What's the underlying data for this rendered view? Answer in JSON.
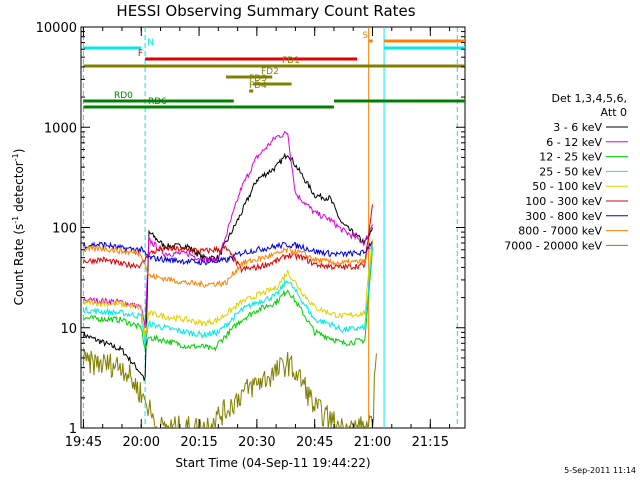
{
  "chart_data": {
    "type": "line",
    "title": "HESSI Observing Summary Count Rates",
    "xlabel": "Start Time (04-Sep-11 19:44:22)",
    "ylabel": "Count Rate (s⁻¹ detector⁻¹)",
    "ylabel_main": "Count Rate (s",
    "ylabel_sup1": "-1",
    "ylabel_mid": " detector",
    "ylabel_sup2": "-1",
    "ylabel_end": ")",
    "y_scale": "log",
    "ylim": [
      1,
      10000
    ],
    "xlim": [
      "19:44:22",
      "21:24:00"
    ],
    "x_ticks": [
      "19:45",
      "20:00",
      "20:15",
      "20:30",
      "20:45",
      "21:00",
      "21:15"
    ],
    "y_ticks": [
      {
        "value": 1,
        "label": "1"
      },
      {
        "value": 10,
        "label": "10"
      },
      {
        "value": 100,
        "label": "100"
      },
      {
        "value": 1000,
        "label": "1000"
      },
      {
        "value": 10000,
        "label": "10000"
      }
    ],
    "legend_header": [
      "Det 1,3,4,5,6,",
      "Att 0"
    ],
    "legend_position": "right",
    "timestamp": "5-Sep-2011 11:14",
    "series": [
      {
        "name": "3 - 6 keV",
        "color": "#000000",
        "points": [
          [
            "19:45",
            8.5
          ],
          [
            "19:55",
            6
          ],
          [
            "20:00",
            3.5
          ],
          [
            "20:01",
            3
          ],
          [
            "20:02",
            90
          ],
          [
            "20:06",
            65
          ],
          [
            "20:12",
            65
          ],
          [
            "20:16",
            50
          ],
          [
            "20:20",
            50
          ],
          [
            "20:26",
            140
          ],
          [
            "20:30",
            300
          ],
          [
            "20:35",
            400
          ],
          [
            "20:38",
            550
          ],
          [
            "20:40",
            420
          ],
          [
            "20:45",
            210
          ],
          [
            "20:49",
            195
          ],
          [
            "20:52",
            110
          ],
          [
            "20:58",
            70
          ],
          [
            "21:00",
            95
          ]
        ]
      },
      {
        "name": "6 - 12 keV",
        "color": "#e000e0",
        "points": [
          [
            "19:45",
            19
          ],
          [
            "19:55",
            18
          ],
          [
            "20:00",
            16
          ],
          [
            "20:01",
            10
          ],
          [
            "20:02",
            75
          ],
          [
            "20:06",
            55
          ],
          [
            "20:12",
            55
          ],
          [
            "20:16",
            48
          ],
          [
            "20:20",
            48
          ],
          [
            "20:26",
            250
          ],
          [
            "20:30",
            500
          ],
          [
            "20:35",
            800
          ],
          [
            "20:38",
            880
          ],
          [
            "20:40",
            220
          ],
          [
            "20:45",
            140
          ],
          [
            "20:49",
            120
          ],
          [
            "20:52",
            95
          ],
          [
            "20:58",
            70
          ],
          [
            "21:00",
            110
          ]
        ]
      },
      {
        "name": "12 - 25 keV",
        "color": "#00d000",
        "points": [
          [
            "19:45",
            12.5
          ],
          [
            "19:55",
            12
          ],
          [
            "20:00",
            10
          ],
          [
            "20:01",
            6
          ],
          [
            "20:02",
            8
          ],
          [
            "20:06",
            7.5
          ],
          [
            "20:12",
            6.5
          ],
          [
            "20:16",
            6.5
          ],
          [
            "20:19",
            6
          ],
          [
            "20:20",
            7
          ],
          [
            "20:26",
            12
          ],
          [
            "20:30",
            15
          ],
          [
            "20:35",
            18
          ],
          [
            "20:38",
            24
          ],
          [
            "20:42",
            14
          ],
          [
            "20:45",
            9
          ],
          [
            "20:49",
            8
          ],
          [
            "20:52",
            7
          ],
          [
            "20:58",
            7.5
          ],
          [
            "21:00",
            60
          ]
        ]
      },
      {
        "name": "25 - 50 keV",
        "color": "#00e8e8",
        "points": [
          [
            "19:45",
            15
          ],
          [
            "19:55",
            14
          ],
          [
            "20:00",
            13
          ],
          [
            "20:01",
            7
          ],
          [
            "20:02",
            11
          ],
          [
            "20:06",
            10
          ],
          [
            "20:12",
            9
          ],
          [
            "20:16",
            8.5
          ],
          [
            "20:20",
            9
          ],
          [
            "20:26",
            15
          ],
          [
            "20:30",
            18
          ],
          [
            "20:35",
            21
          ],
          [
            "20:38",
            30
          ],
          [
            "20:42",
            18
          ],
          [
            "20:45",
            12
          ],
          [
            "20:49",
            11
          ],
          [
            "20:52",
            9.5
          ],
          [
            "20:58",
            10
          ],
          [
            "21:00",
            65
          ]
        ]
      },
      {
        "name": "50 - 100 keV",
        "color": "#e0d000",
        "points": [
          [
            "19:45",
            18
          ],
          [
            "19:55",
            17
          ],
          [
            "20:00",
            16
          ],
          [
            "20:01",
            8
          ],
          [
            "20:02",
            14
          ],
          [
            "20:06",
            13
          ],
          [
            "20:12",
            12
          ],
          [
            "20:16",
            11
          ],
          [
            "20:20",
            12
          ],
          [
            "20:26",
            18
          ],
          [
            "20:30",
            21
          ],
          [
            "20:35",
            25
          ],
          [
            "20:38",
            36
          ],
          [
            "20:42",
            22
          ],
          [
            "20:45",
            16
          ],
          [
            "20:49",
            14
          ],
          [
            "20:52",
            13
          ],
          [
            "20:58",
            14
          ],
          [
            "21:00",
            80
          ]
        ]
      },
      {
        "name": "100 - 300 keV",
        "color": "#e00000",
        "points": [
          [
            "19:45",
            46
          ],
          [
            "19:50",
            48
          ],
          [
            "19:55",
            43
          ],
          [
            "20:00",
            42
          ],
          [
            "20:02",
            55
          ],
          [
            "20:06",
            62
          ],
          [
            "20:12",
            60
          ],
          [
            "20:16",
            58
          ],
          [
            "20:22",
            62
          ],
          [
            "20:26",
            38
          ],
          [
            "20:30",
            40
          ],
          [
            "20:35",
            46
          ],
          [
            "20:38",
            53
          ],
          [
            "20:42",
            50
          ],
          [
            "20:45",
            43
          ],
          [
            "20:49",
            41
          ],
          [
            "20:52",
            40
          ],
          [
            "20:58",
            42
          ],
          [
            "21:00",
            170
          ]
        ]
      },
      {
        "name": "300 - 800 keV",
        "color": "#0000e0",
        "points": [
          [
            "19:45",
            66
          ],
          [
            "19:50",
            68
          ],
          [
            "19:55",
            62
          ],
          [
            "20:00",
            60
          ],
          [
            "20:02",
            50
          ],
          [
            "20:06",
            48
          ],
          [
            "20:12",
            46
          ],
          [
            "20:16",
            45
          ],
          [
            "20:22",
            47
          ],
          [
            "20:26",
            56
          ],
          [
            "20:30",
            60
          ],
          [
            "20:35",
            65
          ],
          [
            "20:38",
            68
          ],
          [
            "20:42",
            64
          ],
          [
            "20:45",
            58
          ],
          [
            "20:49",
            55
          ],
          [
            "20:52",
            54
          ],
          [
            "20:58",
            56
          ],
          [
            "21:00",
            75
          ]
        ]
      },
      {
        "name": "800 - 7000 keV",
        "color": "#ff8000",
        "points": [
          [
            "19:45",
            60
          ],
          [
            "19:50",
            62
          ],
          [
            "19:55",
            58
          ],
          [
            "20:00",
            55
          ],
          [
            "20:02",
            33
          ],
          [
            "20:06",
            31
          ],
          [
            "20:12",
            28
          ],
          [
            "20:16",
            27
          ],
          [
            "20:22",
            28
          ],
          [
            "20:26",
            44
          ],
          [
            "20:30",
            48
          ],
          [
            "20:35",
            54
          ],
          [
            "20:38",
            60
          ],
          [
            "20:42",
            55
          ],
          [
            "20:45",
            48
          ],
          [
            "20:49",
            45
          ],
          [
            "20:52",
            44
          ],
          [
            "20:58",
            46
          ],
          [
            "21:00",
            70
          ]
        ]
      },
      {
        "name": "7000 - 20000 keV",
        "color": "#808000",
        "points": [
          [
            "19:45",
            4.5
          ],
          [
            "19:55",
            4.2
          ],
          [
            "20:00",
            2.2
          ],
          [
            "20:02",
            1.6
          ],
          [
            "20:04",
            1.0
          ],
          [
            "20:16",
            1.0
          ],
          [
            "20:22",
            1.5
          ],
          [
            "20:26",
            2.2
          ],
          [
            "20:30",
            2.8
          ],
          [
            "20:35",
            3.6
          ],
          [
            "20:38",
            4.5
          ],
          [
            "20:42",
            2.8
          ],
          [
            "20:45",
            1.6
          ],
          [
            "20:48",
            1.3
          ],
          [
            "20:52",
            1.0
          ],
          [
            "21:00",
            1.0
          ],
          [
            "21:01",
            7
          ]
        ]
      }
    ],
    "segment_bars": [
      {
        "label": "N",
        "color": "#00e8e8",
        "level": 1,
        "segments": [
          [
            "19:45",
            "20:00"
          ],
          [
            "21:03",
            "21:24"
          ]
        ]
      },
      {
        "label": "S",
        "color": "#ff8000",
        "level": 0,
        "segments": [
          [
            "20:59",
            "21:00"
          ],
          [
            "21:03",
            "21:24"
          ]
        ]
      },
      {
        "label": "F",
        "color": "#e00000",
        "level": 2,
        "segments": [
          [
            "20:01",
            "20:56"
          ]
        ]
      },
      {
        "label": "FD1",
        "color": "#808000",
        "level": 3,
        "segments": [
          [
            "19:45",
            "21:24"
          ]
        ]
      },
      {
        "label": "FD2",
        "color": "#808000",
        "level": 4,
        "segments": [
          [
            "20:22",
            "20:34"
          ]
        ]
      },
      {
        "label": "FD3",
        "color": "#808000",
        "level": 5,
        "segments": [
          [
            "20:29",
            "20:39"
          ]
        ]
      },
      {
        "label": "FD4",
        "color": "#808000",
        "level": 6,
        "segments": [
          [
            "20:28",
            "20:28"
          ]
        ]
      },
      {
        "label": "RD0",
        "color": "#008000",
        "level": 7,
        "segments": [
          [
            "19:45",
            "20:24"
          ],
          [
            "20:50",
            "21:24"
          ]
        ]
      },
      {
        "label": "RD6",
        "color": "#008000",
        "level": 8,
        "segments": [
          [
            "19:45",
            "20:24"
          ],
          [
            "20:24",
            "20:50"
          ]
        ]
      }
    ],
    "vertical_markers": [
      {
        "time": "19:45",
        "color": "#00e8e8",
        "style": "dashed"
      },
      {
        "time": "20:01",
        "color": "#00e8e8",
        "style": "dashed"
      },
      {
        "time": "20:59",
        "color": "#ff8000",
        "style": "solid"
      },
      {
        "time": "21:03",
        "color": "#00e8e8",
        "style": "solid"
      },
      {
        "time": "21:22",
        "color": "#00e8e8",
        "style": "dashed"
      }
    ]
  }
}
